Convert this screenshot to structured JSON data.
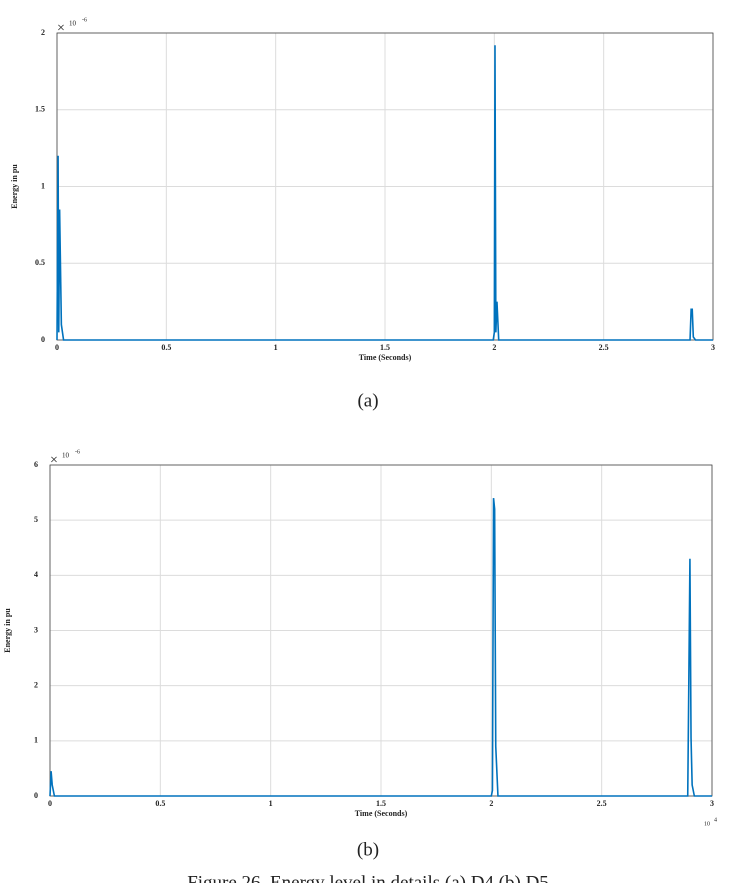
{
  "chart_data": [
    {
      "type": "line",
      "x_label": "Time (Seconds)",
      "y_label": "Energy in pu",
      "y_scale": {
        "symbol": "×",
        "base": "10",
        "exponent": "-6"
      },
      "x": [
        0,
        0.005,
        0.008,
        0.012,
        0.02,
        0.03,
        1.995,
        2.0,
        2.003,
        2.007,
        2.012,
        2.02,
        2.895,
        2.9,
        2.905,
        2.91,
        2.92,
        3.0
      ],
      "values": [
        0,
        1.2,
        0.05,
        0.85,
        0.1,
        0,
        0,
        0.05,
        1.92,
        0.05,
        0.25,
        0,
        0,
        0.2,
        0.2,
        0.02,
        0,
        0
      ],
      "color": "#0072bd",
      "xlim": [
        0,
        3
      ],
      "ylim": [
        0,
        2
      ],
      "xticks": [
        0,
        0.5,
        1,
        1.5,
        2,
        2.5,
        3
      ],
      "yticks": [
        0,
        0.5,
        1,
        1.5,
        2
      ],
      "grid": true
    },
    {
      "type": "line",
      "x_label": "Time (Seconds)",
      "y_label": "Energy in pu",
      "y_scale": {
        "symbol": "×",
        "base": "10",
        "exponent": "-6"
      },
      "x_scale": {
        "base": "10",
        "exponent": "4"
      },
      "x": [
        0,
        0.005,
        0.01,
        0.02,
        2.0,
        2.005,
        2.01,
        2.015,
        2.02,
        2.03,
        2.89,
        2.895,
        2.9,
        2.905,
        2.91,
        2.92,
        3.0
      ],
      "values": [
        0,
        0.45,
        0.2,
        0,
        0,
        0.1,
        5.4,
        5.2,
        0.9,
        0,
        0,
        2.1,
        4.3,
        1.05,
        0.2,
        0,
        0
      ],
      "color": "#0072bd",
      "xlim": [
        0,
        3
      ],
      "ylim": [
        0,
        6
      ],
      "xticks": [
        0,
        0.5,
        1,
        1.5,
        2,
        2.5,
        3
      ],
      "yticks": [
        0,
        1,
        2,
        3,
        4,
        5,
        6
      ],
      "grid": true
    }
  ],
  "captions": [
    "(a)",
    "(b)"
  ],
  "figure_caption": "Figure 26. Energy level in details (a) D4 (b) D5"
}
